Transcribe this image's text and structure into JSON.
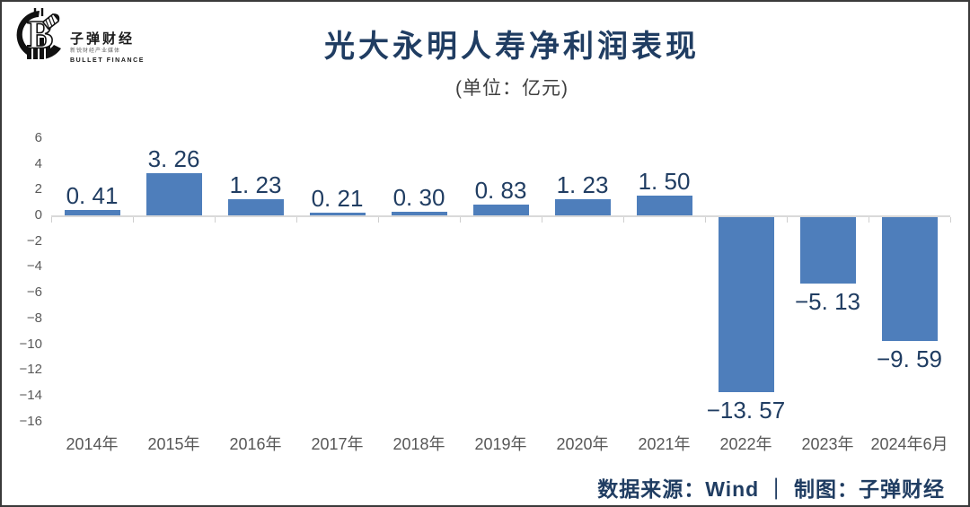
{
  "brand": {
    "name": "子弹财经",
    "tagline": "新锐财经产业媒体",
    "name_en": "BULLET FINANCE",
    "logo_icon": "bullet-coin-chart-logo"
  },
  "header": {
    "title": "光大永明人寿净利润表现",
    "subtitle": "(单位：亿元)"
  },
  "chart_data": {
    "type": "bar",
    "title": "光大永明人寿净利润表现",
    "unit_label": "(单位：亿元)",
    "categories": [
      "2014年",
      "2015年",
      "2016年",
      "2017年",
      "2018年",
      "2019年",
      "2020年",
      "2021年",
      "2022年",
      "2023年",
      "2024年6月"
    ],
    "values": [
      0.41,
      3.26,
      1.23,
      0.21,
      0.3,
      0.83,
      1.23,
      1.5,
      -13.57,
      -5.13,
      -9.59
    ],
    "value_labels": [
      "0. 41",
      "3. 26",
      "1. 23",
      "0. 21",
      "0. 30",
      "0. 83",
      "1. 23",
      "1. 50",
      "−13. 57",
      "−5. 13",
      "−9. 59"
    ],
    "y_ticks": [
      6,
      4,
      2,
      0,
      -2,
      -4,
      -6,
      -8,
      -10,
      -12,
      -14,
      -16
    ],
    "y_tick_labels": [
      "6",
      "4",
      "2",
      "0",
      "−2",
      "−4",
      "−6",
      "−8",
      "−10",
      "−12",
      "−14",
      "−16"
    ],
    "ylim": [
      -16,
      6
    ],
    "grid": false,
    "legend": false,
    "bar_color": "#4e7ebb",
    "value_label_color": "#203d62",
    "axis_line_color": "#d9d9d9",
    "tick_label_color": "#595959",
    "title_color": "#203d62"
  },
  "footer": {
    "source_text": "数据来源：Wind ｜ 制图：子弹财经"
  }
}
